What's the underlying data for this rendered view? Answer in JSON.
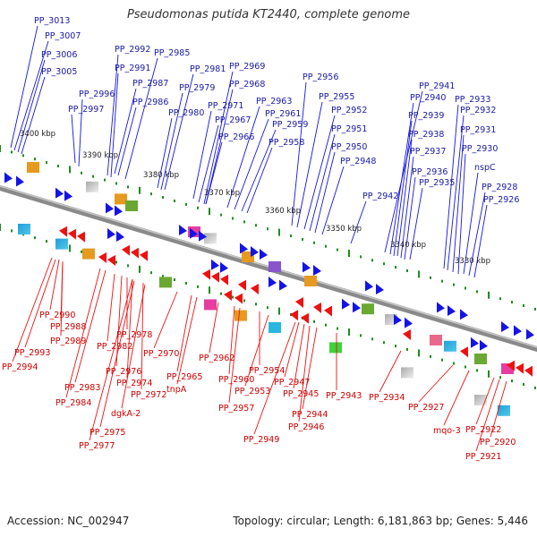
{
  "title": "Pseudomonas putida KT2440, complete genome",
  "footer": {
    "accession": "Accession: NC_002947",
    "summary": "Topology: circular; Length: 6,181,863 bp; Genes: 5,446"
  },
  "colors": {
    "forward": "#1414e6",
    "reverse": "#ee1111",
    "backbone": "#8a8a8a",
    "ticks": "#1f8c1f"
  },
  "ticks": [
    "3400 kbp",
    "3390 kbp",
    "3380 kbp",
    "3370 kbp",
    "3360 kbp",
    "3350 kbp",
    "3340 kbp",
    "3330 kbp"
  ],
  "forward_labels": [
    "PP_3013",
    "PP_3007",
    "PP_3006",
    "PP_3005",
    "PP_2996",
    "PP_2997",
    "PP_2992",
    "PP_2991",
    "PP_2985",
    "PP_2987",
    "PP_2986",
    "PP_2981",
    "PP_2979",
    "PP_2980",
    "PP_2969",
    "PP_2968",
    "PP_2971",
    "PP_2967",
    "PP_2966",
    "PP_2963",
    "PP_2961",
    "PP_2959",
    "PP_2958",
    "PP_2956",
    "PP_2955",
    "PP_2952",
    "PP_2951",
    "PP_2950",
    "PP_2948",
    "PP_2942",
    "PP_2941",
    "PP_2940",
    "PP_2939",
    "PP_2938",
    "PP_2937",
    "PP_2936",
    "PP_2935",
    "PP_2933",
    "PP_2932",
    "PP_2931",
    "PP_2930",
    "nspC",
    "PP_2928",
    "PP_2926"
  ],
  "reverse_labels": [
    "PP_2990",
    "PP_2988",
    "PP_2989",
    "PP_2993",
    "PP_2994",
    "PP_2982",
    "PP_2978",
    "PP_2976",
    "PP_2974",
    "PP_2983",
    "PP_2972",
    "PP_2984",
    "dgkA-2",
    "PP_2975",
    "PP_2977",
    "PP_2970",
    "PP_2965",
    "tnpA",
    "PP_2962",
    "PP_2960",
    "PP_2957",
    "PP_2954",
    "PP_2953",
    "PP_2947",
    "PP_2945",
    "PP_2944",
    "PP_2946",
    "PP_2949",
    "PP_2943",
    "PP_2934",
    "PP_2927",
    "mqo-3",
    "PP_2922",
    "PP_2920",
    "PP_2921"
  ]
}
